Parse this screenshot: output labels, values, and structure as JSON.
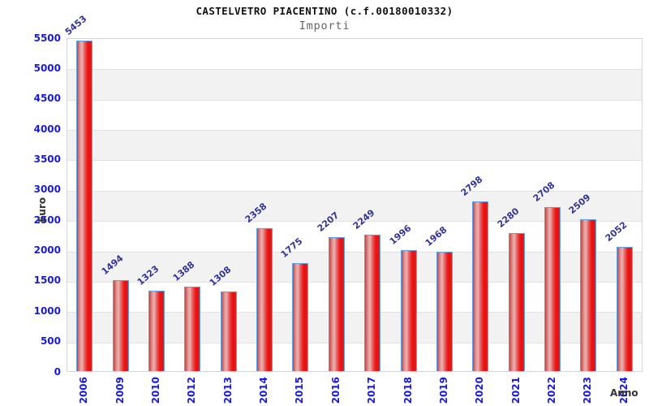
{
  "header": {
    "title": "CASTELVETRO PIACENTINO (c.f.00180010332)",
    "subtitle": "Importi"
  },
  "chart_data": {
    "type": "bar",
    "title": "CASTELVETRO PIACENTINO (c.f.00180010332)",
    "subtitle": "Importi",
    "xlabel": "Anno",
    "ylabel": "Euro",
    "categories": [
      "2006",
      "2009",
      "2010",
      "2012",
      "2013",
      "2014",
      "2015",
      "2016",
      "2017",
      "2018",
      "2019",
      "2020",
      "2021",
      "2022",
      "2023",
      "2024"
    ],
    "values": [
      5453,
      1494,
      1323,
      1388,
      1308,
      2358,
      1775,
      2207,
      2249,
      1996,
      1968,
      2798,
      2280,
      2708,
      2509,
      2052
    ],
    "ylim": [
      0,
      5500
    ],
    "yticks": [
      0,
      500,
      1000,
      1500,
      2000,
      2500,
      3000,
      3500,
      4000,
      4500,
      5000,
      5500
    ],
    "grid": true,
    "legend": false,
    "alternating_bands": true
  },
  "colors": {
    "bar_fill_main": "#ee1414",
    "bar_fill_highlight": "#f0b2b2",
    "bar_fill_edge": "#c04545",
    "bar_border": "#64a0e6",
    "axis_tick_label": "#1a1add",
    "value_label": "#333399",
    "band_gray": "#f2f2f2",
    "gridline": "#e2e2e2",
    "plot_border": "#d6d6d6",
    "title": "#111111",
    "subtitle": "#666666",
    "axis_title": "#333333"
  }
}
